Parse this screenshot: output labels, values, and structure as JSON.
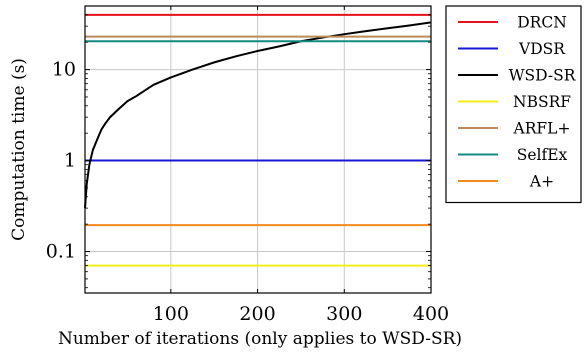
{
  "chart_data": {
    "type": "line",
    "xlabel": "Number of iterations (only applies to WSD-SR)",
    "ylabel": "Computation time (s)",
    "xscale": "linear",
    "yscale": "log",
    "xlim": [
      1,
      400
    ],
    "ylim": [
      0.035,
      50
    ],
    "xticks": [
      100,
      200,
      300,
      400
    ],
    "xtick_labels": [
      "100",
      "200",
      "300",
      "400"
    ],
    "yticks": [
      0.1,
      1,
      10
    ],
    "ytick_labels": [
      "0.1",
      "1",
      "10"
    ],
    "grid": true,
    "legend_position": "outside-right",
    "series": [
      {
        "name": "DRCN",
        "color": "#e8101a",
        "x": [
          1,
          400
        ],
        "y": [
          40,
          40
        ]
      },
      {
        "name": "VDSR",
        "color": "#1616d6",
        "x": [
          1,
          400
        ],
        "y": [
          1.0,
          1.0
        ]
      },
      {
        "name": "WSD-SR",
        "color": "#000000",
        "x": [
          1,
          3,
          6,
          10,
          15,
          20,
          25,
          30,
          40,
          50,
          60,
          80,
          100,
          125,
          150,
          175,
          200,
          225,
          250,
          275,
          300,
          325,
          350,
          375,
          400
        ],
        "y": [
          0.3,
          0.55,
          0.9,
          1.3,
          1.7,
          2.2,
          2.6,
          3.0,
          3.7,
          4.5,
          5.1,
          6.8,
          8.2,
          10.0,
          12.0,
          14.0,
          16.0,
          18.0,
          20.5,
          22.5,
          24.5,
          26.5,
          28.5,
          30.5,
          33.0
        ]
      },
      {
        "name": "NBSRF",
        "color": "#f2ee1a",
        "x": [
          1,
          400
        ],
        "y": [
          0.07,
          0.07
        ]
      },
      {
        "name": "ARFL+",
        "color": "#b98a5a",
        "x": [
          1,
          400
        ],
        "y": [
          23,
          23
        ]
      },
      {
        "name": "SelfEx",
        "color": "#138a80",
        "x": [
          1,
          400
        ],
        "y": [
          20.5,
          20.5
        ]
      },
      {
        "name": "A+",
        "color": "#f08a1c",
        "x": [
          1,
          400
        ],
        "y": [
          0.195,
          0.195
        ]
      }
    ]
  }
}
